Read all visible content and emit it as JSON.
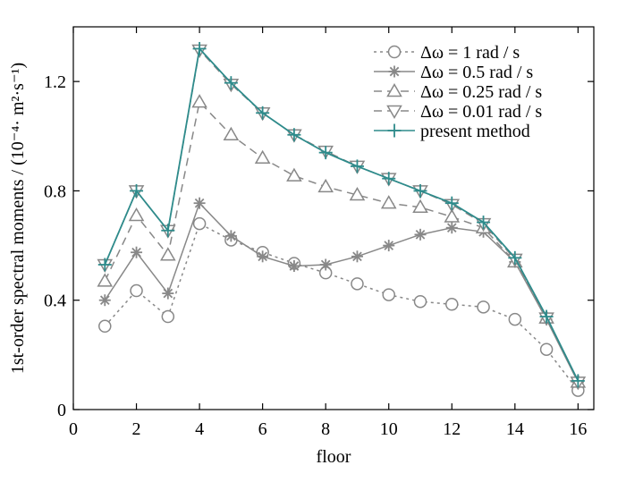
{
  "chart_data": {
    "type": "line",
    "xlabel": "floor",
    "ylabel": "1st-order spectral moments / (10⁻⁴· m²·s⁻¹)",
    "xlim": [
      0,
      16.5
    ],
    "ylim": [
      0,
      1.4
    ],
    "x_ticks": [
      0,
      2,
      4,
      6,
      8,
      10,
      12,
      14,
      16
    ],
    "y_ticks": [
      0,
      0.4,
      0.8,
      1.2
    ],
    "x_tick_labels": [
      "0",
      "2",
      "4",
      "6",
      "8",
      "10",
      "12",
      "14",
      "16"
    ],
    "y_tick_labels": [
      "0",
      "0.4",
      "0.8",
      "1.2"
    ],
    "legend_position": "top-right",
    "x": [
      1,
      2,
      3,
      4,
      5,
      6,
      7,
      8,
      9,
      10,
      11,
      12,
      13,
      14,
      15,
      16
    ],
    "series": [
      {
        "name": "Δω = 1 rad / s",
        "marker": "circle",
        "dash": "dotted",
        "color": "#888888",
        "values": [
          0.305,
          0.435,
          0.34,
          0.68,
          0.62,
          0.575,
          0.535,
          0.5,
          0.46,
          0.42,
          0.395,
          0.385,
          0.375,
          0.33,
          0.22,
          0.07
        ]
      },
      {
        "name": "Δω = 0.5 rad / s",
        "marker": "asterisk",
        "dash": "solid",
        "color": "#888888",
        "values": [
          0.4,
          0.575,
          0.425,
          0.755,
          0.635,
          0.56,
          0.525,
          0.53,
          0.56,
          0.6,
          0.64,
          0.665,
          0.65,
          0.54,
          0.33,
          0.1
        ]
      },
      {
        "name": "Δω = 0.25 rad / s",
        "marker": "triangle-up",
        "dash": "dashed",
        "color": "#888888",
        "values": [
          0.47,
          0.71,
          0.565,
          1.125,
          1.005,
          0.92,
          0.855,
          0.815,
          0.785,
          0.755,
          0.74,
          0.705,
          0.665,
          0.54,
          0.335,
          0.1
        ]
      },
      {
        "name": "Δω = 0.01 rad / s",
        "marker": "triangle-down",
        "dash": "dashed",
        "color": "#888888",
        "values": [
          0.53,
          0.8,
          0.655,
          1.315,
          1.19,
          1.085,
          1.005,
          0.945,
          0.89,
          0.845,
          0.8,
          0.75,
          0.68,
          0.55,
          0.335,
          0.1
        ]
      },
      {
        "name": "present method",
        "marker": "plus",
        "dash": "solid",
        "color": "#2e8b8b",
        "values": [
          0.53,
          0.8,
          0.655,
          1.32,
          1.195,
          1.085,
          1.005,
          0.94,
          0.89,
          0.845,
          0.8,
          0.755,
          0.685,
          0.555,
          0.34,
          0.105
        ]
      }
    ]
  }
}
